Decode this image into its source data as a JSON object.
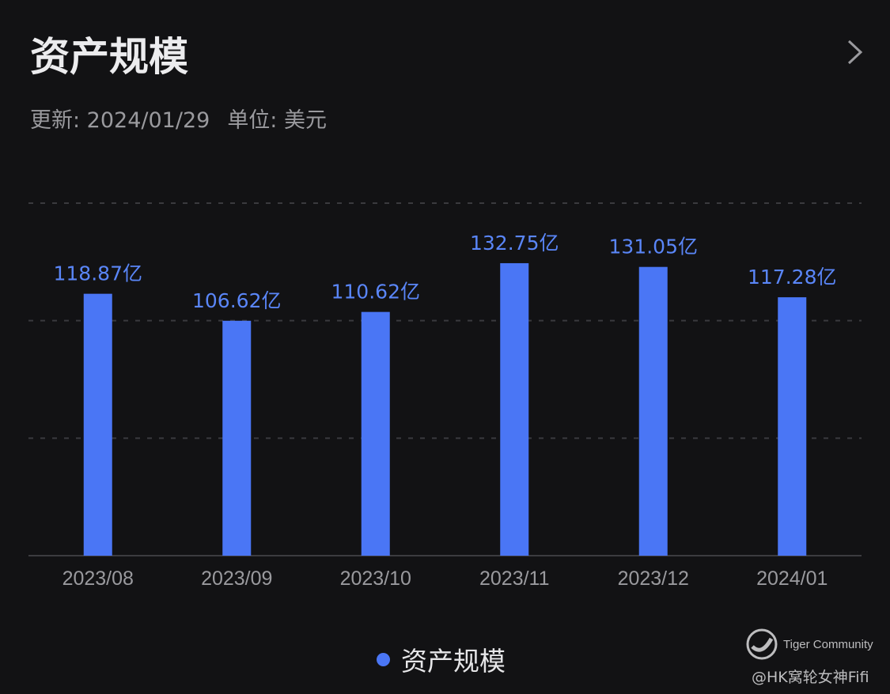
{
  "header": {
    "title": "资产规模",
    "update": "更新: 2024/01/29",
    "unit": "单位: 美元"
  },
  "watermark": {
    "brand": "Tiger Community",
    "user": "@HK窝轮女神Fifi"
  },
  "colors": {
    "bar": "#4a76f5",
    "label": "#5a86f8",
    "grid": "#3a3a3e"
  },
  "chart_data": {
    "type": "bar",
    "title": "资产规模",
    "categories": [
      "2023/08",
      "2023/09",
      "2023/10",
      "2023/11",
      "2023/12",
      "2024/01"
    ],
    "values": [
      118.87,
      106.62,
      110.62,
      132.75,
      131.05,
      117.28
    ],
    "data_labels": [
      "118.87亿",
      "106.62亿",
      "110.62亿",
      "132.75亿",
      "131.05亿",
      "117.28亿"
    ],
    "legend": [
      "资产规模"
    ],
    "legend_position": "bottom",
    "ylim": [
      0,
      160
    ],
    "grid": true,
    "unit": "亿美元"
  }
}
